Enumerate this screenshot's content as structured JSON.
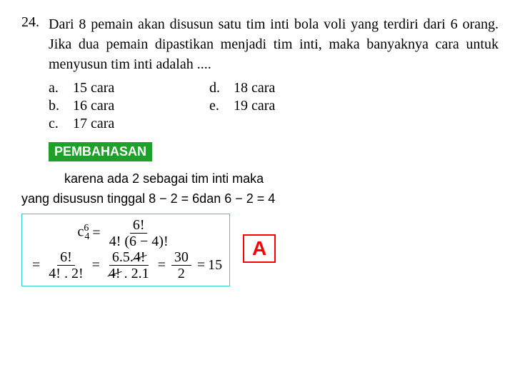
{
  "question": {
    "number": "24.",
    "text": "Dari 8 pemain akan disusun satu tim inti bola voli yang terdiri dari 6 orang. Jika dua pemain dipastikan menjadi tim inti, maka banyaknya cara untuk menyusun tim inti adalah ....",
    "choices": [
      {
        "label": "a.",
        "text": "15 cara"
      },
      {
        "label": "b.",
        "text": "16 cara"
      },
      {
        "label": "c.",
        "text": "17 cara"
      },
      {
        "label": "d.",
        "text": "18 cara"
      },
      {
        "label": "e.",
        "text": "19 cara"
      }
    ]
  },
  "discussion": {
    "heading": "PEMBAHASAN",
    "line1": "karena ada 2 sebagai tim inti maka",
    "line2": "yang disususn tinggal 8 − 2 = 6dan 6 − 2 = 4"
  },
  "math": {
    "lhs_base": "c",
    "lhs_sub": "4",
    "lhs_sup": "6",
    "eq": "=",
    "f1_num": "6!",
    "f1_den": "4! (6 − 4)!",
    "f2_num": "6!",
    "f2_den": "4! . 2!",
    "f3_num_a": "6.5.",
    "f3_num_strike": "4!",
    "f3_den_strike": "4!",
    "f3_den_b": " . 2.1",
    "f4_num": "30",
    "f4_den": "2",
    "result": "15"
  },
  "answer": "A",
  "colors": {
    "heading_bg": "#1fa02a",
    "heading_text": "#ffffff",
    "box_border": "#2fd0d0",
    "answer_color": "#ff0000",
    "text": "#000000"
  }
}
